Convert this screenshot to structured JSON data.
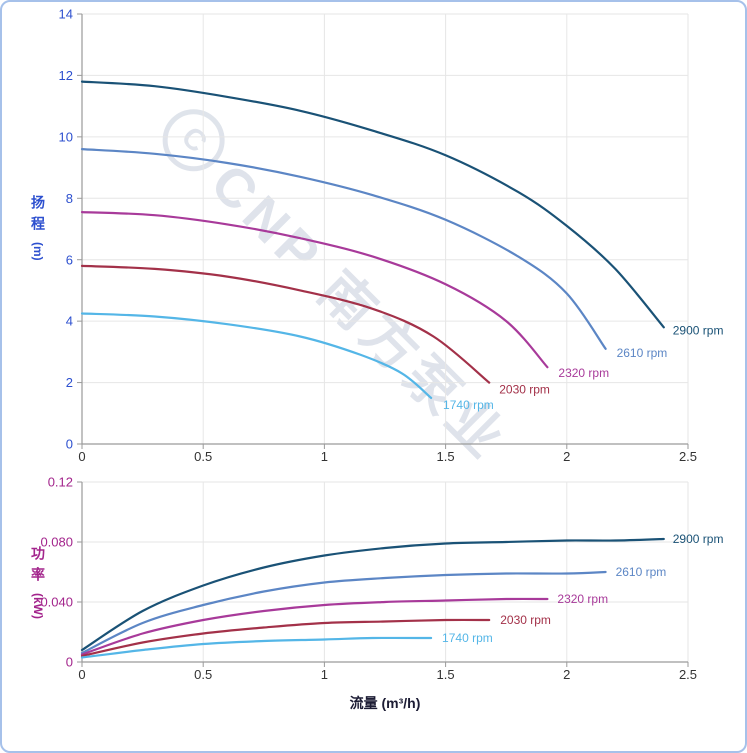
{
  "frame": {
    "border_color": "#a6c1ea"
  },
  "watermark": {
    "logo_text": "C",
    "text": "CNP 南方泵业"
  },
  "xlabel": "流量 (m³/h)",
  "axis": {
    "head_label": "扬程",
    "head_unit": "(m)",
    "power_label": "功率",
    "power_unit": "(kW)"
  },
  "chart_data": [
    {
      "type": "line",
      "name": "head-vs-flow",
      "title": "",
      "ylabel": "扬程 (m)",
      "xlabel": "流量 (m³/h)",
      "ylim": [
        0,
        14
      ],
      "xlim": [
        0,
        2.5
      ],
      "yticks": [
        0,
        2,
        4,
        6,
        8,
        10,
        12,
        14
      ],
      "ytick_labels": [
        "0",
        "2",
        "4",
        "6",
        "8",
        "10",
        "12",
        "14"
      ],
      "xticks": [
        0,
        0.5,
        1,
        1.5,
        2,
        2.5
      ],
      "xtick_labels": [
        "0",
        "0.5",
        "1",
        "1.5",
        "2",
        "2.5"
      ],
      "ytick_color": "#2d50cf",
      "xtick_color": "#333333",
      "grid": true,
      "legend_position": "curve-ends",
      "series": [
        {
          "name": "2900 rpm",
          "color": "#1a5276",
          "label_dx": 9,
          "label_dy": 7,
          "points": [
            [
              0,
              11.8
            ],
            [
              0.3,
              11.65
            ],
            [
              0.6,
              11.3
            ],
            [
              0.9,
              10.85
            ],
            [
              1.2,
              10.2
            ],
            [
              1.5,
              9.4
            ],
            [
              1.8,
              8.2
            ],
            [
              2.0,
              7.1
            ],
            [
              2.2,
              5.7
            ],
            [
              2.4,
              3.8
            ]
          ]
        },
        {
          "name": "2610 rpm",
          "color": "#5c86c5",
          "label_dx": 11,
          "label_dy": 8,
          "points": [
            [
              0,
              9.6
            ],
            [
              0.3,
              9.45
            ],
            [
              0.6,
              9.15
            ],
            [
              0.9,
              8.7
            ],
            [
              1.2,
              8.1
            ],
            [
              1.5,
              7.3
            ],
            [
              1.8,
              6.1
            ],
            [
              2.0,
              4.9
            ],
            [
              2.16,
              3.1
            ]
          ]
        },
        {
          "name": "2320 rpm",
          "color": "#a83a9a",
          "label_dx": 11,
          "label_dy": 10,
          "points": [
            [
              0,
              7.55
            ],
            [
              0.3,
              7.45
            ],
            [
              0.6,
              7.15
            ],
            [
              0.9,
              6.7
            ],
            [
              1.2,
              6.1
            ],
            [
              1.5,
              5.2
            ],
            [
              1.75,
              4.0
            ],
            [
              1.92,
              2.5
            ]
          ]
        },
        {
          "name": "2030 rpm",
          "color": "#a33149",
          "label_dx": 10,
          "label_dy": 11,
          "points": [
            [
              0,
              5.8
            ],
            [
              0.3,
              5.7
            ],
            [
              0.6,
              5.45
            ],
            [
              0.9,
              5.0
            ],
            [
              1.2,
              4.4
            ],
            [
              1.45,
              3.5
            ],
            [
              1.68,
              2.0
            ]
          ]
        },
        {
          "name": "1740 rpm",
          "color": "#54b6e7",
          "label_dx": 12,
          "label_dy": 11,
          "points": [
            [
              0,
              4.25
            ],
            [
              0.3,
              4.15
            ],
            [
              0.6,
              3.9
            ],
            [
              0.9,
              3.5
            ],
            [
              1.15,
              2.9
            ],
            [
              1.32,
              2.3
            ],
            [
              1.44,
              1.5
            ]
          ]
        }
      ]
    },
    {
      "type": "line",
      "name": "power-vs-flow",
      "title": "",
      "ylabel": "功率 (kW)",
      "xlabel": "流量 (m³/h)",
      "ylim": [
        0,
        0.12
      ],
      "xlim": [
        0,
        2.5
      ],
      "yticks": [
        0,
        0.04,
        0.08,
        0.12
      ],
      "ytick_labels": [
        "0",
        "0.040",
        "0.080",
        "0.12"
      ],
      "xticks": [
        0,
        0.5,
        1,
        1.5,
        2,
        2.5
      ],
      "xtick_labels": [
        "0",
        "0.5",
        "1",
        "1.5",
        "2",
        "2.5"
      ],
      "ytick_color": "#a3258c",
      "xtick_color": "#333333",
      "grid": true,
      "legend_position": "curve-ends",
      "series": [
        {
          "name": "2900 rpm",
          "color": "#1a5276",
          "label_dx": 9,
          "label_dy": 4,
          "points": [
            [
              0,
              0.008
            ],
            [
              0.25,
              0.034
            ],
            [
              0.5,
              0.051
            ],
            [
              0.75,
              0.063
            ],
            [
              1,
              0.071
            ],
            [
              1.25,
              0.076
            ],
            [
              1.5,
              0.079
            ],
            [
              1.75,
              0.08
            ],
            [
              2,
              0.081
            ],
            [
              2.2,
              0.081
            ],
            [
              2.4,
              0.082
            ]
          ]
        },
        {
          "name": "2610 rpm",
          "color": "#5c86c5",
          "label_dx": 10,
          "label_dy": 4,
          "points": [
            [
              0,
              0.006
            ],
            [
              0.25,
              0.026
            ],
            [
              0.5,
              0.038
            ],
            [
              0.75,
              0.047
            ],
            [
              1,
              0.053
            ],
            [
              1.25,
              0.056
            ],
            [
              1.5,
              0.058
            ],
            [
              1.75,
              0.059
            ],
            [
              2,
              0.059
            ],
            [
              2.16,
              0.06
            ]
          ]
        },
        {
          "name": "2320 rpm",
          "color": "#a83a9a",
          "label_dx": 10,
          "label_dy": 4,
          "points": [
            [
              0,
              0.005
            ],
            [
              0.25,
              0.019
            ],
            [
              0.5,
              0.028
            ],
            [
              0.75,
              0.034
            ],
            [
              1,
              0.038
            ],
            [
              1.25,
              0.04
            ],
            [
              1.5,
              0.041
            ],
            [
              1.75,
              0.042
            ],
            [
              1.92,
              0.042
            ]
          ]
        },
        {
          "name": "2030 rpm",
          "color": "#a33149",
          "label_dx": 11,
          "label_dy": 4,
          "points": [
            [
              0,
              0.004
            ],
            [
              0.25,
              0.013
            ],
            [
              0.5,
              0.019
            ],
            [
              0.75,
              0.023
            ],
            [
              1,
              0.026
            ],
            [
              1.25,
              0.027
            ],
            [
              1.5,
              0.028
            ],
            [
              1.68,
              0.028
            ]
          ]
        },
        {
          "name": "1740 rpm",
          "color": "#54b6e7",
          "label_dx": 11,
          "label_dy": 4,
          "points": [
            [
              0,
              0.003
            ],
            [
              0.25,
              0.008
            ],
            [
              0.5,
              0.012
            ],
            [
              0.75,
              0.014
            ],
            [
              1,
              0.015
            ],
            [
              1.2,
              0.016
            ],
            [
              1.44,
              0.016
            ]
          ]
        }
      ]
    }
  ]
}
